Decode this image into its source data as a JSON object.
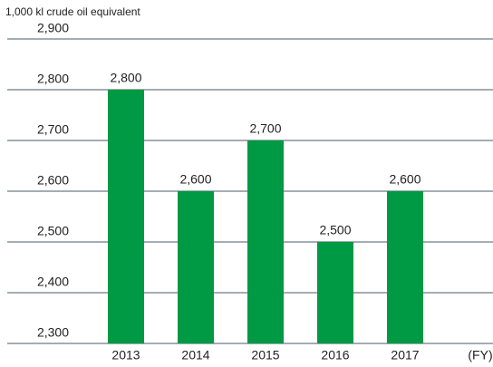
{
  "chart_data": {
    "type": "bar",
    "y_label": "1,000 kl crude oil equivalent",
    "x_label": "(FY)",
    "categories": [
      "2013",
      "2014",
      "2015",
      "2016",
      "2017"
    ],
    "values": [
      2800,
      2600,
      2700,
      2500,
      2600
    ],
    "value_labels": [
      "2,800",
      "2,600",
      "2,700",
      "2,500",
      "2,600"
    ],
    "color": "#009944",
    "ylim": [
      2300,
      2900
    ],
    "yticks": [
      {
        "value": 2300,
        "label": "2,300"
      },
      {
        "value": 2400,
        "label": "2,400"
      },
      {
        "value": 2500,
        "label": "2,500"
      },
      {
        "value": 2600,
        "label": "2,600"
      },
      {
        "value": 2700,
        "label": "2,700"
      },
      {
        "value": 2800,
        "label": "2,800"
      },
      {
        "value": 2900,
        "label": "2,900"
      }
    ],
    "grid": true
  }
}
